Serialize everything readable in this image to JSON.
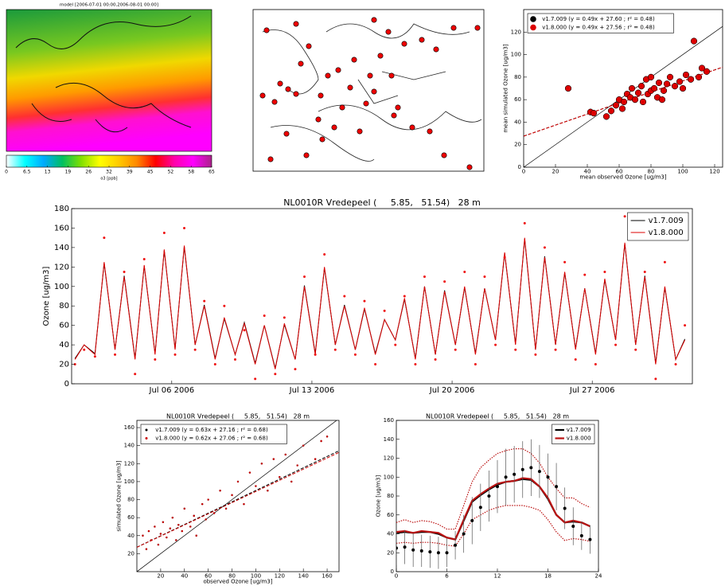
{
  "chart_data": [
    {
      "type": "colormap",
      "title": "model [2006-07-01 00:00,2006-08-01 00:00]",
      "colorbar": {
        "label": "o3 [ppb]",
        "lim": [
          0,
          65
        ],
        "colors": [
          "#ffffff",
          "#00ffff",
          "#00aaff",
          "#00c060",
          "#80e000",
          "#ffff00",
          "#ffcc00",
          "#ff8800",
          "#ff0000",
          "#ff00aa",
          "#ff00ff",
          "#aa2288"
        ],
        "ticks": [
          0,
          6.5,
          13,
          {
            "value": 19.5,
            "label": "19"
          },
          26,
          {
            "value": 32.5,
            "label": "32"
          },
          39,
          {
            "value": 45.5,
            "label": "45"
          },
          52,
          {
            "value": 58.5,
            "label": "58"
          },
          65
        ]
      }
    },
    {
      "type": "scatter",
      "xlabel": "mean observed Ozone [ug/m3]",
      "ylabel": "mean simulated Ozone [ug/m3]",
      "xlim": [
        0,
        125
      ],
      "ylim": [
        0,
        140
      ],
      "xticks": [
        0,
        20,
        40,
        60,
        80,
        100,
        120
      ],
      "yticks": [
        0,
        20,
        40,
        60,
        80,
        100,
        120
      ],
      "legend": "upper left",
      "identity_line": true,
      "x": [
        28,
        42,
        44,
        52,
        55,
        58,
        60,
        62,
        63,
        65,
        67,
        68,
        70,
        72,
        74,
        75,
        77,
        78,
        80,
        80,
        82,
        84,
        85,
        87,
        88,
        90,
        92,
        95,
        98,
        100,
        102,
        105,
        107,
        110,
        112,
        115
      ],
      "series": [
        {
          "name": "v1.7.009 (y = 0.49x + 27.60 ; r² = 0.48)",
          "color": "#000000",
          "fit": [
            0.49,
            27.6
          ],
          "values": [
            70,
            49,
            48,
            45,
            50,
            55,
            60,
            52,
            58,
            65,
            62,
            70,
            60,
            66,
            72,
            58,
            78,
            65,
            80,
            68,
            70,
            62,
            75,
            60,
            68,
            74,
            80,
            72,
            76,
            70,
            82,
            78,
            112,
            80,
            88,
            85
          ]
        },
        {
          "name": "v1.8.000 (y = 0.49x + 27.56 ; r² = 0.48)",
          "color": "#dd0000",
          "fit": [
            0.49,
            27.56
          ],
          "values": [
            70,
            49,
            48,
            45,
            50,
            55,
            60,
            52,
            58,
            65,
            62,
            70,
            60,
            66,
            72,
            58,
            78,
            65,
            80,
            68,
            70,
            62,
            75,
            60,
            68,
            74,
            80,
            72,
            76,
            70,
            82,
            78,
            112,
            80,
            88,
            85
          ]
        }
      ]
    },
    {
      "type": "line",
      "title": "NL0010R Vredepeel (     5.85,   51.54)   28 m",
      "ylabel": "Ozone [ug/m3]",
      "xlim": [
        "2006-07-01T00:00",
        "2006-08-01T00:00"
      ],
      "ylim": [
        0,
        180
      ],
      "yticks": [
        0,
        20,
        40,
        60,
        80,
        100,
        120,
        140,
        160,
        180
      ],
      "xticks": [
        {
          "value": "2006-07-06T00:00",
          "label": "Jul 06 2006"
        },
        {
          "value": "2006-07-13T00:00",
          "label": "Jul 13 2006"
        },
        {
          "value": "2006-07-20T00:00",
          "label": "Jul 20 2006"
        },
        {
          "value": "2006-07-27T00:00",
          "label": "Jul 27 2006"
        }
      ],
      "legend": "upper right",
      "x": [
        "2006-07-01T04:00",
        "2006-07-01T15:00",
        "2006-07-02T04:00",
        "2006-07-02T15:00",
        "2006-07-03T04:00",
        "2006-07-03T15:00",
        "2006-07-04T04:00",
        "2006-07-04T15:00",
        "2006-07-05T04:00",
        "2006-07-05T15:00",
        "2006-07-06T04:00",
        "2006-07-06T15:00",
        "2006-07-07T04:00",
        "2006-07-07T15:00",
        "2006-07-08T04:00",
        "2006-07-08T15:00",
        "2006-07-09T04:00",
        "2006-07-09T15:00",
        "2006-07-10T04:00",
        "2006-07-10T15:00",
        "2006-07-11T04:00",
        "2006-07-11T15:00",
        "2006-07-12T04:00",
        "2006-07-12T15:00",
        "2006-07-13T04:00",
        "2006-07-13T15:00",
        "2006-07-14T04:00",
        "2006-07-14T15:00",
        "2006-07-15T04:00",
        "2006-07-15T15:00",
        "2006-07-16T04:00",
        "2006-07-16T15:00",
        "2006-07-17T04:00",
        "2006-07-17T15:00",
        "2006-07-18T04:00",
        "2006-07-18T15:00",
        "2006-07-19T04:00",
        "2006-07-19T15:00",
        "2006-07-20T04:00",
        "2006-07-20T15:00",
        "2006-07-21T04:00",
        "2006-07-21T15:00",
        "2006-07-22T04:00",
        "2006-07-22T15:00",
        "2006-07-23T04:00",
        "2006-07-23T15:00",
        "2006-07-24T04:00",
        "2006-07-24T15:00",
        "2006-07-25T04:00",
        "2006-07-25T15:00",
        "2006-07-26T04:00",
        "2006-07-26T15:00",
        "2006-07-27T04:00",
        "2006-07-27T15:00",
        "2006-07-28T04:00",
        "2006-07-28T15:00",
        "2006-07-29T04:00",
        "2006-07-29T15:00",
        "2006-07-30T04:00",
        "2006-07-30T15:00",
        "2006-07-31T04:00",
        "2006-07-31T15:00"
      ],
      "series": [
        {
          "name": "v1.7.009",
          "color": "#000000",
          "values": [
            26,
            40,
            31,
            124,
            35,
            111,
            26,
            121,
            31,
            137,
            36,
            141,
            40,
            81,
            26,
            67,
            30,
            63,
            21,
            60,
            16,
            61,
            25,
            101,
            31,
            119,
            40,
            81,
            35,
            77,
            31,
            66,
            45,
            87,
            26,
            100,
            30,
            96,
            40,
            99,
            31,
            98,
            45,
            134,
            41,
            149,
            35,
            131,
            40,
            114,
            36,
            98,
            31,
            107,
            45,
            144,
            40,
            111,
            21,
            99,
            25,
            46
          ]
        },
        {
          "name": "v1.8.000",
          "color": "#dd0000",
          "values": [
            25,
            40,
            30,
            125,
            35,
            110,
            25,
            122,
            30,
            138,
            35,
            142,
            40,
            80,
            25,
            68,
            30,
            62,
            20,
            60,
            15,
            62,
            25,
            100,
            30,
            120,
            40,
            80,
            35,
            78,
            30,
            66,
            45,
            88,
            25,
            100,
            30,
            95,
            40,
            100,
            30,
            98,
            45,
            135,
            40,
            150,
            35,
            130,
            40,
            115,
            35,
            98,
            30,
            108,
            45,
            145,
            40,
            110,
            20,
            100,
            25,
            45
          ]
        }
      ],
      "observed": {
        "color": "#ee1111",
        "values": [
          20,
          35,
          28,
          150,
          30,
          115,
          10,
          128,
          25,
          155,
          30,
          160,
          35,
          85,
          20,
          80,
          25,
          55,
          5,
          70,
          10,
          68,
          15,
          110,
          30,
          133,
          35,
          90,
          30,
          85,
          20,
          75,
          40,
          90,
          20,
          110,
          25,
          105,
          35,
          115,
          20,
          110,
          40,
          130,
          35,
          165,
          30,
          140,
          35,
          125,
          25,
          112,
          20,
          115,
          40,
          172,
          35,
          115,
          5,
          125,
          20,
          60
        ]
      }
    },
    {
      "type": "scatter",
      "title": "NL0010R Vredepeel (     5.85,   51.54)   28 m",
      "xlabel": "observed Ozone [ug/m3]",
      "ylabel": "simulated Ozone [ug/m3]",
      "xlim": [
        0,
        170
      ],
      "ylim": [
        0,
        168
      ],
      "xticks": [
        20,
        40,
        60,
        80,
        100,
        120,
        140,
        160
      ],
      "yticks": [
        20,
        40,
        60,
        80,
        100,
        120,
        140,
        160
      ],
      "legend": "upper left",
      "identity_line": true,
      "x": [
        5,
        8,
        10,
        12,
        15,
        18,
        20,
        22,
        25,
        28,
        30,
        33,
        35,
        38,
        40,
        45,
        48,
        50,
        55,
        58,
        60,
        65,
        70,
        75,
        80,
        85,
        90,
        95,
        100,
        105,
        110,
        115,
        120,
        125,
        130,
        135,
        140,
        150,
        155,
        160
      ],
      "series": [
        {
          "name": "v1.7.009 (y = 0.63x + 27.16 ; r² = 0.68)",
          "color": "#000000",
          "fit": [
            0.63,
            27.16
          ],
          "values": [
            40,
            25,
            45,
            35,
            50,
            30,
            42,
            55,
            38,
            48,
            60,
            35,
            52,
            45,
            70,
            50,
            62,
            40,
            75,
            58,
            80,
            65,
            90,
            70,
            85,
            100,
            75,
            110,
            95,
            120,
            90,
            125,
            105,
            130,
            100,
            118,
            140,
            125,
            145,
            150
          ]
        },
        {
          "name": "v1.8.000 (y = 0.62x + 27.06 ; r² = 0.68)",
          "color": "#cc0000",
          "fit": [
            0.62,
            27.06
          ],
          "values": [
            40,
            25,
            45,
            35,
            50,
            30,
            42,
            55,
            38,
            48,
            60,
            35,
            52,
            45,
            70,
            50,
            62,
            40,
            75,
            58,
            80,
            65,
            90,
            70,
            85,
            100,
            75,
            110,
            95,
            120,
            90,
            125,
            105,
            130,
            100,
            118,
            140,
            125,
            145,
            150
          ]
        }
      ]
    },
    {
      "type": "line",
      "title": "NL0010R Vredepeel (     5.85,   51.54)   28 m",
      "ylabel": "Ozone [ug/m3]",
      "xlim": [
        0,
        24
      ],
      "ylim": [
        0,
        160
      ],
      "xticks": [
        0,
        6,
        12,
        18,
        24
      ],
      "yticks": [
        0,
        20,
        40,
        60,
        80,
        100,
        120,
        140,
        160
      ],
      "legend": "upper right",
      "x": [
        0,
        1,
        2,
        3,
        4,
        5,
        6,
        7,
        8,
        9,
        10,
        11,
        12,
        13,
        14,
        15,
        16,
        17,
        18,
        19,
        20,
        21,
        22,
        23
      ],
      "series": [
        {
          "name": "v1.7.009",
          "color": "#000000",
          "values": [
            41,
            42,
            41,
            42,
            42,
            40,
            36,
            34,
            54,
            74,
            81,
            87,
            92,
            95,
            96,
            98,
            97,
            90,
            77,
            60,
            52,
            53,
            52,
            48
          ]
        },
        {
          "name": "v1.8.000",
          "color": "#bb1111",
          "values": [
            42,
            43,
            41,
            43,
            42,
            41,
            36,
            34,
            55,
            75,
            82,
            88,
            93,
            95,
            96,
            99,
            98,
            90,
            78,
            60,
            52,
            54,
            52,
            48
          ]
        }
      ],
      "band": {
        "color": "#bb1111",
        "upper": [
          52,
          55,
          52,
          54,
          53,
          50,
          45,
          45,
          70,
          95,
          110,
          118,
          125,
          128,
          130,
          130,
          125,
          115,
          100,
          88,
          78,
          78,
          72,
          68
        ],
        "lower": [
          30,
          31,
          30,
          31,
          31,
          30,
          28,
          27,
          40,
          55,
          60,
          65,
          68,
          70,
          70,
          70,
          68,
          65,
          55,
          42,
          33,
          35,
          34,
          32
        ]
      },
      "observed": {
        "color": "#000000",
        "values": [
          25,
          26,
          23,
          22,
          21,
          20,
          20,
          28,
          40,
          54,
          68,
          80,
          90,
          100,
          103,
          108,
          110,
          106,
          100,
          90,
          67,
          48,
          38,
          34
        ],
        "errors": [
          18,
          18,
          18,
          17,
          17,
          17,
          15,
          15,
          20,
          25,
          25,
          27,
          28,
          30,
          30,
          30,
          30,
          28,
          25,
          25,
          22,
          20,
          15,
          15
        ]
      }
    }
  ]
}
